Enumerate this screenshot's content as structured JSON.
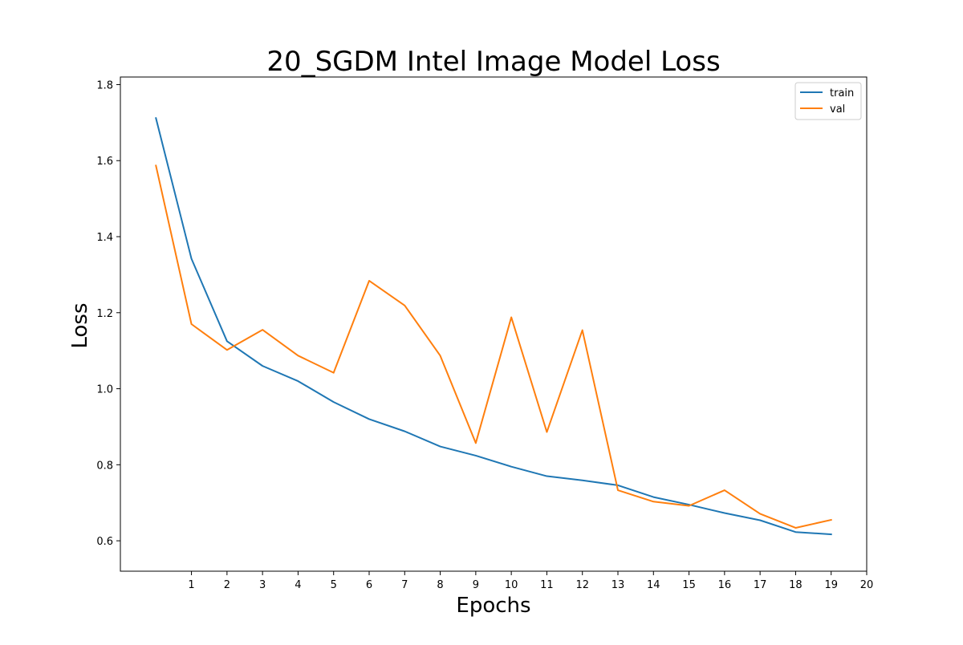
{
  "chart_data": {
    "type": "line",
    "title": "20_SGDM Intel Image Model Loss",
    "xlabel": "Epochs",
    "ylabel": "Loss",
    "xlim": [
      -1.0,
      20.0
    ],
    "ylim": [
      0.52,
      1.82
    ],
    "xticks": [
      1,
      2,
      3,
      4,
      5,
      6,
      7,
      8,
      9,
      10,
      11,
      12,
      13,
      14,
      15,
      16,
      17,
      18,
      19,
      20
    ],
    "yticks": [
      0.6,
      0.8,
      1.0,
      1.2,
      1.4,
      1.6,
      1.8
    ],
    "ytick_labels": [
      "0.6",
      "0.8",
      "1.0",
      "1.2",
      "1.4",
      "1.6",
      "1.8"
    ],
    "grid": false,
    "legend_position": "top-right",
    "x": [
      0,
      1,
      2,
      3,
      4,
      5,
      6,
      7,
      8,
      9,
      10,
      11,
      12,
      13,
      14,
      15,
      16,
      17,
      18,
      19
    ],
    "series": [
      {
        "name": "train",
        "color": "#1f77b4",
        "values": [
          1.712,
          1.342,
          1.125,
          1.06,
          1.02,
          0.965,
          0.92,
          0.888,
          0.848,
          0.824,
          0.795,
          0.77,
          0.759,
          0.746,
          0.715,
          0.695,
          0.673,
          0.654,
          0.623,
          0.617
        ]
      },
      {
        "name": "val",
        "color": "#ff7f0e",
        "values": [
          1.587,
          1.17,
          1.102,
          1.155,
          1.087,
          1.042,
          1.284,
          1.219,
          1.087,
          0.857,
          1.188,
          0.886,
          1.154,
          0.733,
          0.703,
          0.692,
          0.733,
          0.671,
          0.634,
          0.655
        ]
      }
    ]
  }
}
